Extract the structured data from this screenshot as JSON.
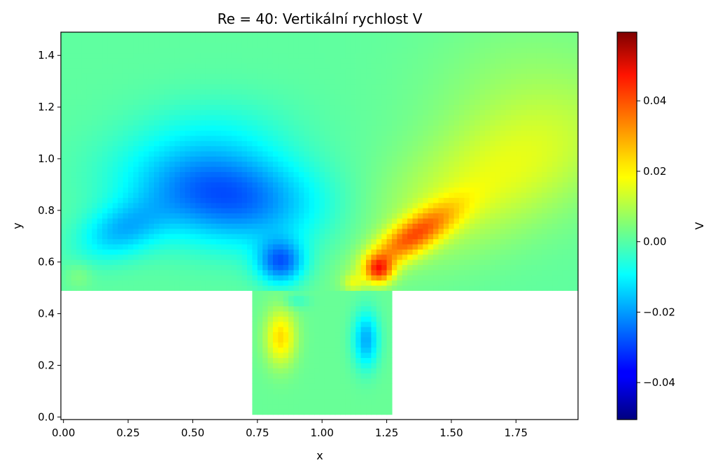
{
  "chart_data": {
    "type": "heatmap",
    "title": "Re = 40: Vertikální rychlost V",
    "xlabel": "x",
    "ylabel": "y",
    "colorbar_label": "V",
    "colormap": "jet",
    "xlim": [
      -0.01,
      1.99
    ],
    "ylim": [
      -0.01,
      1.49
    ],
    "vmin": -0.0505,
    "vmax": 0.0595,
    "x_ticks": [
      {
        "value": 0.0,
        "label": "0.00"
      },
      {
        "value": 0.25,
        "label": "0.25"
      },
      {
        "value": 0.5,
        "label": "0.50"
      },
      {
        "value": 0.75,
        "label": "0.75"
      },
      {
        "value": 1.0,
        "label": "1.00"
      },
      {
        "value": 1.25,
        "label": "1.25"
      },
      {
        "value": 1.5,
        "label": "1.50"
      },
      {
        "value": 1.75,
        "label": "1.75"
      }
    ],
    "y_ticks": [
      {
        "value": 0.0,
        "label": "0.0"
      },
      {
        "value": 0.2,
        "label": "0.2"
      },
      {
        "value": 0.4,
        "label": "0.4"
      },
      {
        "value": 0.6,
        "label": "0.6"
      },
      {
        "value": 0.8,
        "label": "0.8"
      },
      {
        "value": 1.0,
        "label": "1.0"
      },
      {
        "value": 1.2,
        "label": "1.2"
      },
      {
        "value": 1.4,
        "label": "1.4"
      }
    ],
    "colorbar_ticks": [
      {
        "value": -0.04,
        "label": "−0.04"
      },
      {
        "value": -0.02,
        "label": "−0.02"
      },
      {
        "value": 0.0,
        "label": "0.00"
      },
      {
        "value": 0.02,
        "label": "0.02"
      },
      {
        "value": 0.04,
        "label": "0.04"
      }
    ],
    "domain": {
      "upper_channel": {
        "x": [
          -0.01,
          1.99
        ],
        "y": [
          0.49,
          1.49
        ]
      },
      "cavity": {
        "x": [
          0.73,
          1.27
        ],
        "y": [
          0.01,
          0.49
        ]
      }
    },
    "features": [
      {
        "x": 0.84,
        "y": 0.6,
        "value": -0.05
      },
      {
        "x": 0.56,
        "y": 0.85,
        "value": -0.035
      },
      {
        "x": 0.22,
        "y": 0.72,
        "value": -0.025
      },
      {
        "x": 1.22,
        "y": 0.57,
        "value": 0.059
      },
      {
        "x": 1.38,
        "y": 0.74,
        "value": 0.03
      },
      {
        "x": 0.84,
        "y": 0.31,
        "value": 0.023
      },
      {
        "x": 1.17,
        "y": 0.3,
        "value": -0.018
      }
    ]
  }
}
